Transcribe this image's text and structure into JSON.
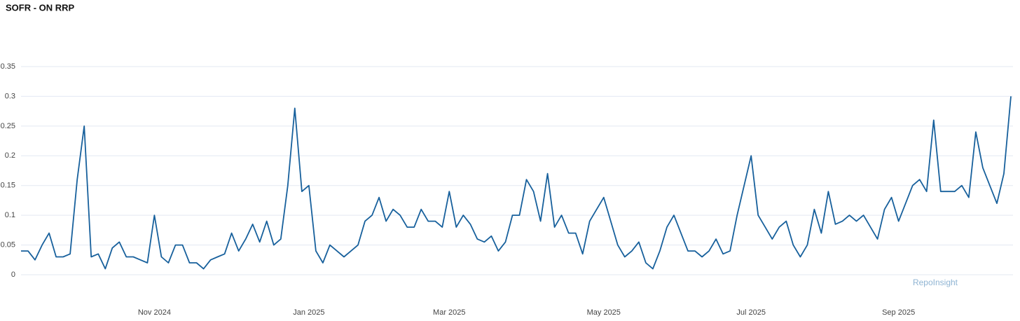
{
  "chart_data": {
    "type": "line",
    "title": "SOFR - ON RRP",
    "watermark": "RepoInsight",
    "categories": [
      null,
      null,
      null,
      null,
      null,
      null,
      null,
      null,
      null,
      null,
      null,
      null,
      null,
      null,
      null,
      null,
      null,
      null,
      null,
      "Nov 2024",
      null,
      null,
      null,
      null,
      null,
      null,
      null,
      null,
      null,
      null,
      null,
      null,
      null,
      null,
      null,
      null,
      null,
      null,
      null,
      null,
      null,
      "Jan 2025",
      null,
      null,
      null,
      null,
      null,
      null,
      null,
      null,
      null,
      null,
      null,
      null,
      null,
      null,
      null,
      null,
      null,
      null,
      null,
      "Mar 2025",
      null,
      null,
      null,
      null,
      null,
      null,
      null,
      null,
      null,
      null,
      null,
      null,
      null,
      null,
      null,
      null,
      null,
      null,
      null,
      null,
      null,
      "May 2025",
      null,
      null,
      null,
      null,
      null,
      null,
      null,
      null,
      null,
      null,
      null,
      null,
      null,
      null,
      null,
      null,
      null,
      null,
      null,
      null,
      "Jul 2025",
      null,
      null,
      null,
      null,
      null,
      null,
      null,
      null,
      null,
      null,
      null,
      null,
      null,
      null,
      null,
      null,
      null,
      null,
      null,
      null,
      "Sep 2025",
      null,
      null,
      null,
      null,
      null,
      null,
      null,
      null,
      null,
      null,
      null,
      null,
      null,
      null,
      null,
      null
    ],
    "series": [
      {
        "name": "SOFR - ON RRP",
        "color": "#17609c",
        "values": [
          0.04,
          0.04,
          0.025,
          0.05,
          0.07,
          0.03,
          0.03,
          0.035,
          0.16,
          0.25,
          0.03,
          0.035,
          0.01,
          0.045,
          0.055,
          0.03,
          0.03,
          0.025,
          0.02,
          0.1,
          0.03,
          0.02,
          0.05,
          0.05,
          0.02,
          0.02,
          0.01,
          0.025,
          0.03,
          0.035,
          0.07,
          0.04,
          0.06,
          0.085,
          0.055,
          0.09,
          0.05,
          0.06,
          0.15,
          0.28,
          0.14,
          0.15,
          0.04,
          0.02,
          0.05,
          0.04,
          0.03,
          0.04,
          0.05,
          0.09,
          0.1,
          0.13,
          0.09,
          0.11,
          0.1,
          0.08,
          0.08,
          0.11,
          0.09,
          0.09,
          0.08,
          0.14,
          0.08,
          0.1,
          0.085,
          0.06,
          0.055,
          0.065,
          0.04,
          0.055,
          0.1,
          0.1,
          0.16,
          0.14,
          0.09,
          0.17,
          0.08,
          0.1,
          0.07,
          0.07,
          0.035,
          0.09,
          0.11,
          0.13,
          0.09,
          0.05,
          0.03,
          0.04,
          0.055,
          0.02,
          0.01,
          0.04,
          0.08,
          0.1,
          0.07,
          0.04,
          0.04,
          0.03,
          0.04,
          0.06,
          0.035,
          0.04,
          0.1,
          0.15,
          0.2,
          0.1,
          0.08,
          0.06,
          0.08,
          0.09,
          0.05,
          0.03,
          0.05,
          0.11,
          0.07,
          0.14,
          0.085,
          0.09,
          0.1,
          0.09,
          0.1,
          0.08,
          0.06,
          0.11,
          0.13,
          0.09,
          0.12,
          0.15,
          0.16,
          0.14,
          0.26,
          0.14,
          0.14,
          0.14,
          0.15,
          0.13,
          0.24,
          0.18,
          0.15,
          0.12,
          0.17,
          0.3
        ]
      }
    ],
    "ylim": [
      0,
      0.35
    ],
    "yticks": [
      0,
      0.05,
      0.1,
      0.15,
      0.2,
      0.25,
      0.3,
      0.35
    ],
    "grid": true
  }
}
